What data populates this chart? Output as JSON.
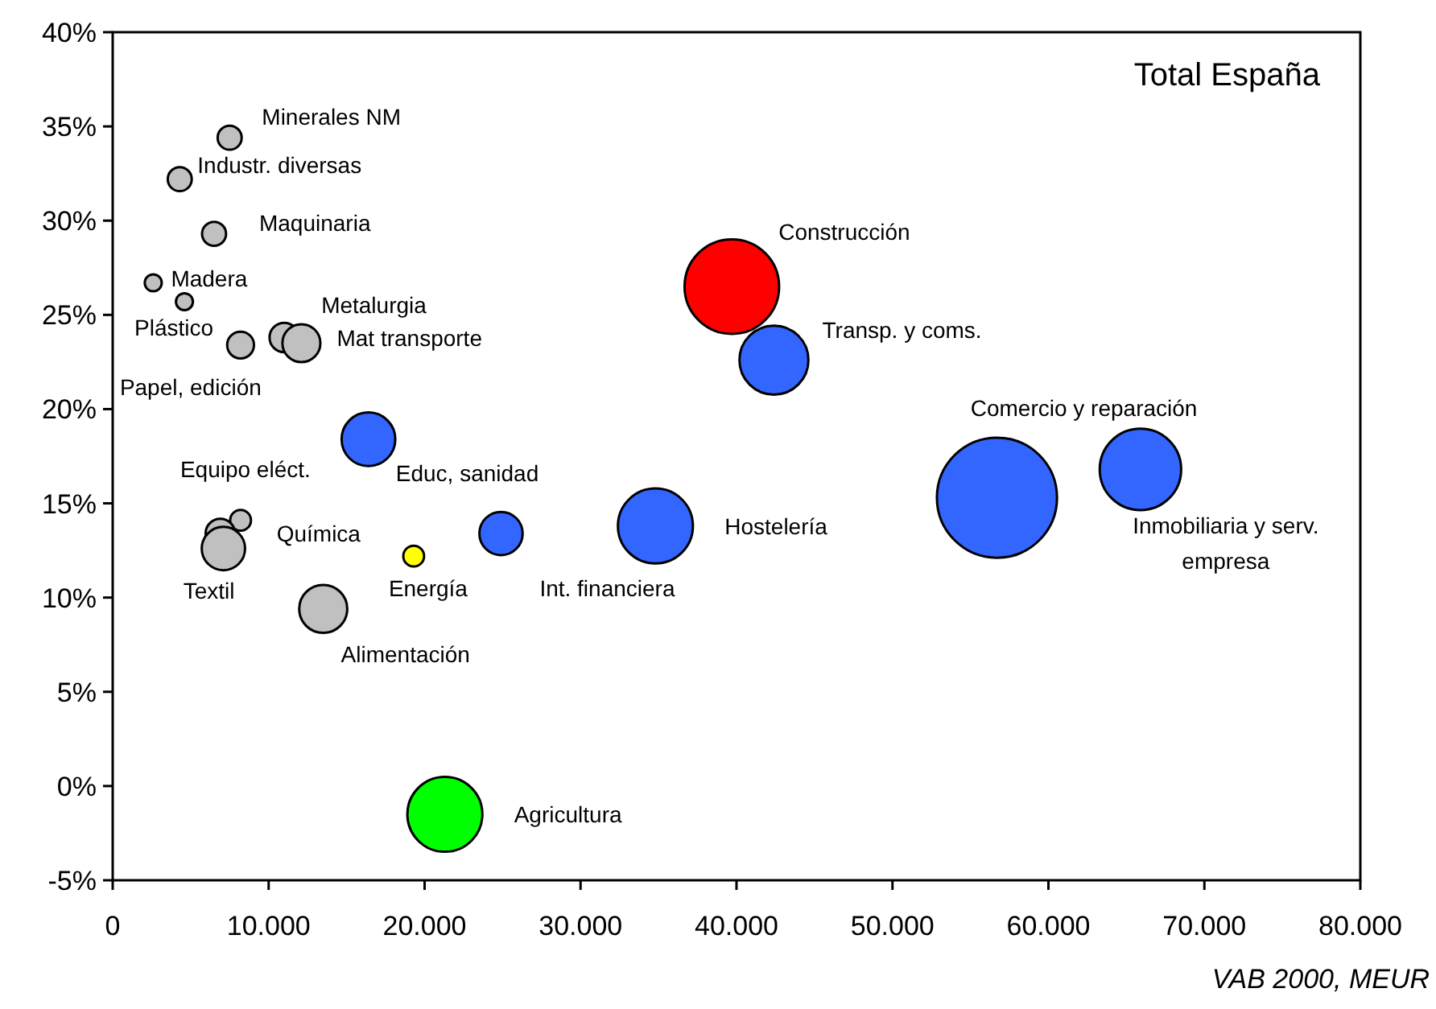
{
  "chart_data": {
    "type": "bubble",
    "title": "Total España",
    "xlabel": "VAB 2000, MEUR",
    "x": [
      7500,
      4300,
      6500,
      2600,
      4600,
      8200,
      11000,
      12100,
      16400,
      8200,
      6900,
      7100,
      19300,
      24900,
      13500,
      21300,
      39700,
      42400,
      34800,
      56700,
      65900
    ],
    "values": [
      34.4,
      32.2,
      29.3,
      26.7,
      25.7,
      23.4,
      23.8,
      23.5,
      18.4,
      14.1,
      13.4,
      12.6,
      12.2,
      13.4,
      9.4,
      -1.5,
      26.5,
      22.6,
      13.8,
      15.3,
      16.8
    ],
    "sizes": [
      0.04,
      0.04,
      0.04,
      0.02,
      0.02,
      0.05,
      0.06,
      0.1,
      0.2,
      0.03,
      0.06,
      0.13,
      0.03,
      0.13,
      0.16,
      0.39,
      0.62,
      0.33,
      0.39,
      1,
      0.46
    ],
    "colors": [
      "#c0c0c0",
      "#c0c0c0",
      "#c0c0c0",
      "#c0c0c0",
      "#c0c0c0",
      "#c0c0c0",
      "#c0c0c0",
      "#c0c0c0",
      "#3366ff",
      "#c0c0c0",
      "#c0c0c0",
      "#c0c0c0",
      "#ffff00",
      "#3366ff",
      "#c0c0c0",
      "#00ff00",
      "#ff0000",
      "#3366ff",
      "#3366ff",
      "#3366ff",
      "#3366ff"
    ],
    "annotations": [
      {
        "text": "Minerales NM",
        "x": 7500,
        "y": 34.4
      },
      {
        "text": "Industr. diversas",
        "x": 4300,
        "y": 32.2
      },
      {
        "text": "Maquinaria",
        "x": 6500,
        "y": 29.3
      },
      {
        "text": "Madera",
        "x": 2600,
        "y": 26.7
      },
      {
        "text": "Plástico",
        "x": 4600,
        "y": 25.7
      },
      {
        "text": "Papel, edición",
        "x": 8200,
        "y": 23.4
      },
      {
        "text": "Metalurgia",
        "x": 11000,
        "y": 23.8
      },
      {
        "text": "Mat transporte",
        "x": 12100,
        "y": 23.5
      },
      {
        "text": "Educ, sanidad",
        "x": 16400,
        "y": 18.4
      },
      {
        "text": "Equipo eléct.",
        "x": 8200,
        "y": 14.1
      },
      {
        "text": "Química",
        "x": 6900,
        "y": 13.4
      },
      {
        "text": "Textil",
        "x": 7100,
        "y": 12.6
      },
      {
        "text": "Energía",
        "x": 19300,
        "y": 12.2
      },
      {
        "text": "Int. financiera",
        "x": 24900,
        "y": 13.4
      },
      {
        "text": "Alimentación",
        "x": 13500,
        "y": 9.4
      },
      "Agricultura",
      {
        "text": "Construcción",
        "x": 39700,
        "y": 26.5
      },
      {
        "text": "Transp. y coms.",
        "x": 42400,
        "y": 22.6
      },
      "Hostelería",
      "Comercio y reparación",
      {
        "text": "Inmobiliaria y serv. empresa",
        "x": 65900,
        "y": 16.8
      }
    ],
    "xlim": [
      0,
      80000
    ],
    "xticks": [
      0,
      {
        "value": 10000,
        "label": "10.000"
      },
      {
        "value": 20000,
        "label": "20.000"
      },
      {
        "value": 30000,
        "label": "30.000"
      },
      {
        "value": 40000,
        "label": "40.000"
      },
      {
        "value": 50000,
        "label": "50.000"
      },
      {
        "value": 60000,
        "label": "60.000"
      },
      {
        "value": 70000,
        "label": "70.000"
      },
      {
        "value": 80000,
        "label": "80.000"
      }
    ],
    "ylim": [
      -5,
      40
    ],
    "yticks": [
      {
        "value": -5,
        "label": "-5%"
      },
      {
        "value": 0,
        "label": "0%"
      },
      {
        "value": 5,
        "label": "5%"
      },
      {
        "value": 10,
        "label": "10%"
      },
      {
        "value": 15,
        "label": "15%"
      },
      {
        "value": 20,
        "label": "20%"
      },
      {
        "value": 25,
        "label": "25%"
      },
      {
        "value": 30,
        "label": "30%"
      },
      {
        "value": 35,
        "label": "35%"
      },
      {
        "value": 40,
        "label": "40%"
      }
    ]
  }
}
